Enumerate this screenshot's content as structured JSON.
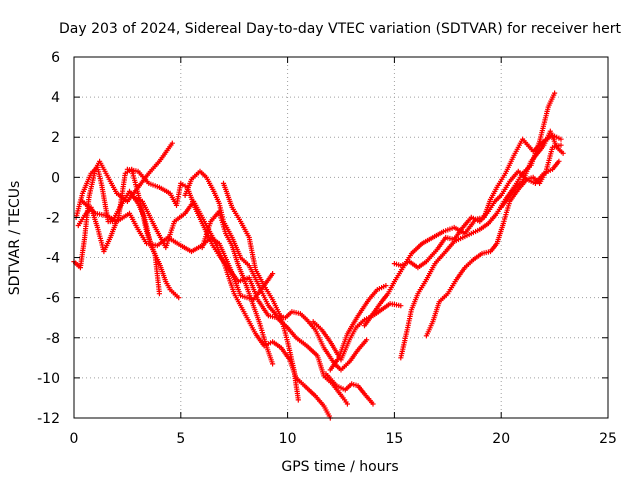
{
  "chart_data": {
    "type": "scatter",
    "title": "Day 203 of 2024, Sidereal Day-to-day VTEC variation (SDTVAR) for receiver hert",
    "xlabel": "GPS time / hours",
    "ylabel": "SDTVAR / TECUs",
    "xlim": [
      0,
      25
    ],
    "ylim": [
      -12,
      6
    ],
    "xticks": [
      0,
      5,
      10,
      15,
      20,
      25
    ],
    "yticks": [
      -12,
      -10,
      -8,
      -6,
      -4,
      -2,
      0,
      2,
      4,
      6
    ],
    "grid": true,
    "marker": "+",
    "color": "#ff0000",
    "series": [
      {
        "points": [
          [
            0.0,
            -4.2
          ],
          [
            0.3,
            -4.5
          ],
          [
            0.5,
            -3.0
          ],
          [
            0.7,
            -1.0
          ],
          [
            1.0,
            0.4
          ],
          [
            1.2,
            0.8
          ],
          [
            1.5,
            0.2
          ],
          [
            2.0,
            -0.8
          ],
          [
            2.5,
            -1.2
          ],
          [
            3.0,
            -0.5
          ],
          [
            3.5,
            0.2
          ],
          [
            4.0,
            0.8
          ],
          [
            4.6,
            1.7
          ]
        ]
      },
      {
        "points": [
          [
            0.1,
            -2.0
          ],
          [
            0.4,
            -0.8
          ],
          [
            0.8,
            0.2
          ],
          [
            1.1,
            0.5
          ],
          [
            1.3,
            -0.4
          ],
          [
            1.6,
            -2.2
          ],
          [
            1.8,
            -2.2
          ],
          [
            2.2,
            -1.4
          ],
          [
            2.6,
            -0.7
          ],
          [
            3.0,
            -1.3
          ],
          [
            3.3,
            -2.0
          ],
          [
            3.6,
            -3.4
          ],
          [
            4.0,
            -4.3
          ],
          [
            4.3,
            -5.2
          ],
          [
            4.5,
            -5.6
          ],
          [
            4.9,
            -6.0
          ]
        ]
      },
      {
        "points": [
          [
            0.2,
            -2.4
          ],
          [
            0.5,
            -1.9
          ],
          [
            0.8,
            -1.5
          ],
          [
            1.1,
            -2.5
          ],
          [
            1.4,
            -3.7
          ],
          [
            1.7,
            -3.0
          ],
          [
            2.1,
            -1.9
          ],
          [
            2.4,
            0.2
          ],
          [
            2.7,
            0.4
          ],
          [
            3.0,
            -0.8
          ],
          [
            3.4,
            -2.7
          ],
          [
            3.8,
            -3.9
          ],
          [
            4.0,
            -5.8
          ]
        ]
      },
      {
        "points": [
          [
            0.4,
            -1.2
          ],
          [
            1.0,
            -1.8
          ],
          [
            1.5,
            -1.9
          ],
          [
            2.0,
            -2.2
          ],
          [
            2.6,
            -1.8
          ],
          [
            3.0,
            -2.6
          ],
          [
            3.4,
            -3.3
          ],
          [
            3.9,
            -3.4
          ],
          [
            4.4,
            -3.0
          ],
          [
            5.0,
            -3.4
          ],
          [
            5.5,
            -3.7
          ],
          [
            6.0,
            -3.4
          ],
          [
            6.4,
            -3.0
          ],
          [
            6.8,
            -3.3
          ],
          [
            7.3,
            -4.5
          ],
          [
            7.8,
            -5.9
          ],
          [
            8.4,
            -6.1
          ],
          [
            8.9,
            -5.4
          ],
          [
            9.3,
            -4.8
          ]
        ]
      },
      {
        "points": [
          [
            2.5,
            0.4
          ],
          [
            3.0,
            0.3
          ],
          [
            3.5,
            -0.3
          ],
          [
            4.0,
            -0.5
          ],
          [
            4.5,
            -0.8
          ],
          [
            4.8,
            -1.4
          ],
          [
            5.0,
            -0.3
          ],
          [
            5.3,
            -0.5
          ],
          [
            5.7,
            -1.6
          ],
          [
            6.1,
            -2.5
          ],
          [
            6.5,
            -3.4
          ],
          [
            6.8,
            -3.9
          ],
          [
            7.2,
            -4.5
          ],
          [
            7.7,
            -5.2
          ],
          [
            8.2,
            -5.0
          ],
          [
            8.6,
            -6.1
          ],
          [
            9.1,
            -6.9
          ],
          [
            9.5,
            -7.0
          ],
          [
            10.0,
            -7.5
          ],
          [
            10.4,
            -8.0
          ],
          [
            10.9,
            -8.4
          ],
          [
            11.4,
            -8.9
          ],
          [
            11.7,
            -9.9
          ],
          [
            12.1,
            -10.3
          ],
          [
            12.6,
            -11.0
          ],
          [
            12.8,
            -11.3
          ]
        ]
      },
      {
        "points": [
          [
            2.8,
            -1.0
          ],
          [
            3.2,
            -1.2
          ],
          [
            3.8,
            -2.5
          ],
          [
            4.3,
            -3.5
          ],
          [
            4.7,
            -2.2
          ],
          [
            5.2,
            -1.8
          ],
          [
            5.6,
            -1.2
          ],
          [
            6.1,
            -2.2
          ],
          [
            6.5,
            -3.0
          ],
          [
            7.0,
            -4.2
          ],
          [
            7.5,
            -5.8
          ],
          [
            8.0,
            -6.8
          ],
          [
            8.5,
            -7.8
          ],
          [
            8.9,
            -8.4
          ],
          [
            9.3,
            -8.2
          ],
          [
            9.7,
            -8.5
          ],
          [
            10.1,
            -9.1
          ],
          [
            10.4,
            -10.0
          ],
          [
            10.8,
            -10.4
          ],
          [
            11.3,
            -10.9
          ],
          [
            11.7,
            -11.4
          ],
          [
            12.0,
            -12.0
          ]
        ]
      },
      {
        "points": [
          [
            5.2,
            -0.9
          ],
          [
            5.5,
            -0.1
          ],
          [
            5.9,
            0.3
          ],
          [
            6.2,
            0.0
          ],
          [
            6.5,
            -0.6
          ],
          [
            6.8,
            -1.3
          ],
          [
            7.0,
            -2.2
          ],
          [
            7.4,
            -3.0
          ],
          [
            7.8,
            -4.0
          ],
          [
            8.2,
            -4.4
          ],
          [
            8.7,
            -5.5
          ],
          [
            9.1,
            -6.4
          ],
          [
            9.5,
            -6.9
          ],
          [
            9.9,
            -7.0
          ],
          [
            10.2,
            -6.7
          ],
          [
            10.6,
            -6.8
          ],
          [
            10.9,
            -7.1
          ],
          [
            11.3,
            -7.6
          ],
          [
            11.7,
            -8.5
          ],
          [
            12.2,
            -9.3
          ],
          [
            12.5,
            -9.6
          ],
          [
            12.9,
            -9.2
          ],
          [
            13.3,
            -8.6
          ],
          [
            13.7,
            -8.1
          ]
        ]
      },
      {
        "points": [
          [
            6.0,
            -3.5
          ],
          [
            6.4,
            -2.2
          ],
          [
            6.8,
            -1.7
          ],
          [
            7.1,
            -2.8
          ],
          [
            7.4,
            -3.4
          ],
          [
            7.7,
            -4.4
          ],
          [
            8.0,
            -5.2
          ],
          [
            8.4,
            -6.4
          ],
          [
            8.7,
            -7.3
          ],
          [
            9.0,
            -8.4
          ],
          [
            9.3,
            -9.3
          ]
        ]
      },
      {
        "points": [
          [
            7.0,
            -0.3
          ],
          [
            7.4,
            -1.5
          ],
          [
            7.8,
            -2.2
          ],
          [
            8.2,
            -3.0
          ],
          [
            8.5,
            -4.6
          ],
          [
            8.9,
            -5.4
          ],
          [
            9.3,
            -6.1
          ],
          [
            9.7,
            -7.0
          ],
          [
            10.0,
            -8.2
          ],
          [
            10.3,
            -9.6
          ],
          [
            10.5,
            -11.1
          ]
        ]
      },
      {
        "points": [
          [
            11.2,
            -7.2
          ],
          [
            11.6,
            -7.6
          ],
          [
            12.0,
            -8.2
          ],
          [
            12.5,
            -9.1
          ],
          [
            12.9,
            -8.1
          ],
          [
            13.2,
            -7.5
          ],
          [
            13.6,
            -7.1
          ],
          [
            14.0,
            -6.9
          ],
          [
            14.4,
            -6.6
          ],
          [
            14.8,
            -6.3
          ],
          [
            15.3,
            -6.4
          ]
        ]
      },
      {
        "points": [
          [
            12.0,
            -9.6
          ],
          [
            12.4,
            -9.0
          ],
          [
            12.8,
            -7.8
          ],
          [
            13.3,
            -6.9
          ],
          [
            13.8,
            -6.1
          ],
          [
            14.2,
            -5.6
          ],
          [
            14.6,
            -5.4
          ]
        ]
      },
      {
        "points": [
          [
            11.8,
            -9.8
          ],
          [
            12.3,
            -10.4
          ],
          [
            12.7,
            -10.6
          ],
          [
            13.0,
            -10.3
          ],
          [
            13.3,
            -10.4
          ],
          [
            13.6,
            -10.8
          ],
          [
            14.0,
            -11.3
          ]
        ]
      },
      {
        "points": [
          [
            13.6,
            -7.4
          ],
          [
            14.0,
            -6.8
          ],
          [
            14.4,
            -6.2
          ],
          [
            14.7,
            -5.8
          ],
          [
            15.0,
            -5.2
          ],
          [
            15.4,
            -4.5
          ],
          [
            15.8,
            -3.8
          ],
          [
            16.3,
            -3.3
          ],
          [
            16.8,
            -3.0
          ],
          [
            17.3,
            -2.7
          ],
          [
            17.8,
            -2.5
          ],
          [
            18.3,
            -2.8
          ],
          [
            18.8,
            -2.1
          ],
          [
            19.2,
            -2.0
          ],
          [
            19.5,
            -1.1
          ],
          [
            19.8,
            -0.5
          ],
          [
            20.2,
            0.2
          ],
          [
            20.6,
            1.1
          ],
          [
            21.0,
            1.9
          ],
          [
            21.5,
            1.3
          ],
          [
            22.0,
            1.8
          ],
          [
            22.4,
            2.1
          ],
          [
            22.8,
            1.9
          ]
        ]
      },
      {
        "points": [
          [
            15.0,
            -4.3
          ],
          [
            15.3,
            -4.4
          ],
          [
            15.7,
            -4.2
          ],
          [
            16.1,
            -4.5
          ],
          [
            16.5,
            -4.2
          ],
          [
            17.0,
            -3.6
          ],
          [
            17.4,
            -3.0
          ],
          [
            17.8,
            -3.1
          ],
          [
            18.2,
            -2.5
          ],
          [
            18.6,
            -2.0
          ],
          [
            19.0,
            -2.2
          ],
          [
            19.4,
            -1.7
          ],
          [
            19.7,
            -1.2
          ],
          [
            20.0,
            -0.9
          ],
          [
            20.4,
            -0.2
          ],
          [
            20.8,
            0.3
          ],
          [
            21.2,
            -0.1
          ],
          [
            21.6,
            -0.3
          ],
          [
            22.0,
            0.2
          ],
          [
            22.4,
            0.4
          ],
          [
            22.7,
            0.8
          ]
        ]
      },
      {
        "points": [
          [
            15.3,
            -9.0
          ],
          [
            15.6,
            -7.6
          ],
          [
            15.8,
            -6.6
          ],
          [
            16.1,
            -5.8
          ],
          [
            16.5,
            -5.1
          ],
          [
            16.9,
            -4.3
          ],
          [
            17.4,
            -3.7
          ],
          [
            17.8,
            -3.2
          ],
          [
            18.2,
            -3.0
          ],
          [
            18.6,
            -2.8
          ],
          [
            19.0,
            -2.6
          ],
          [
            19.4,
            -2.3
          ],
          [
            19.8,
            -1.8
          ],
          [
            20.2,
            -1.1
          ],
          [
            20.6,
            -0.5
          ],
          [
            21.0,
            0.2
          ],
          [
            21.4,
            0.6
          ],
          [
            21.8,
            1.8
          ],
          [
            22.2,
            3.5
          ],
          [
            22.5,
            4.2
          ]
        ]
      },
      {
        "points": [
          [
            16.5,
            -7.9
          ],
          [
            16.8,
            -7.2
          ],
          [
            17.1,
            -6.2
          ],
          [
            17.5,
            -5.8
          ],
          [
            17.9,
            -5.1
          ],
          [
            18.3,
            -4.5
          ],
          [
            18.7,
            -4.1
          ],
          [
            19.1,
            -3.8
          ],
          [
            19.5,
            -3.7
          ],
          [
            19.8,
            -3.3
          ],
          [
            20.1,
            -2.3
          ],
          [
            20.4,
            -1.2
          ],
          [
            20.8,
            -0.6
          ],
          [
            21.2,
            -0.1
          ],
          [
            21.5,
            0.0
          ],
          [
            21.8,
            -0.3
          ],
          [
            22.1,
            0.3
          ],
          [
            22.4,
            1.5
          ],
          [
            22.8,
            1.6
          ]
        ]
      },
      {
        "points": [
          [
            20.0,
            -1.5
          ],
          [
            20.4,
            -0.9
          ],
          [
            20.7,
            -0.5
          ],
          [
            21.0,
            -0.2
          ],
          [
            21.4,
            0.8
          ],
          [
            21.7,
            1.2
          ],
          [
            22.0,
            1.6
          ],
          [
            22.3,
            2.3
          ],
          [
            22.6,
            1.5
          ],
          [
            22.9,
            1.2
          ]
        ]
      }
    ]
  }
}
